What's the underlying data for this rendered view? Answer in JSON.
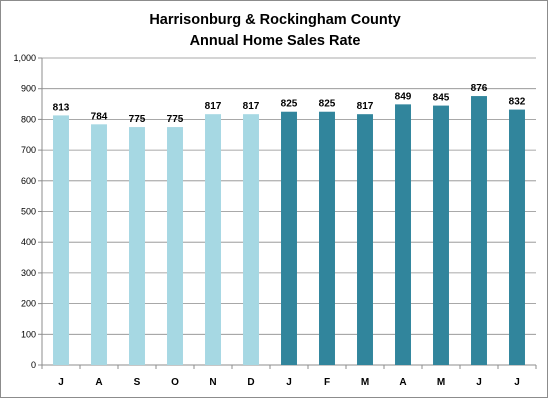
{
  "chart_data": {
    "type": "bar",
    "title_lines": [
      "Harrisonburg & Rockingham County",
      "Annual Home Sales Rate"
    ],
    "xlabel": "",
    "ylabel": "",
    "categories": [
      "J",
      "A",
      "S",
      "O",
      "N",
      "D",
      "J",
      "F",
      "M",
      "A",
      "M",
      "J",
      "J"
    ],
    "values": [
      813,
      784,
      775,
      775,
      817,
      817,
      825,
      825,
      817,
      849,
      845,
      876,
      832
    ],
    "bar_colors": [
      "#a6d8e3",
      "#a6d8e3",
      "#a6d8e3",
      "#a6d8e3",
      "#a6d8e3",
      "#a6d8e3",
      "#31859c",
      "#31859c",
      "#31859c",
      "#31859c",
      "#31859c",
      "#31859c",
      "#31859c"
    ],
    "ylim": [
      0,
      1000
    ],
    "yticks": [
      0,
      100,
      200,
      300,
      400,
      500,
      600,
      700,
      800,
      900,
      1000
    ],
    "ytick_labels": [
      "0",
      "100",
      "200",
      "300",
      "400",
      "500",
      "600",
      "700",
      "800",
      "900",
      "1,000"
    ],
    "grid": true,
    "legend": "none"
  }
}
